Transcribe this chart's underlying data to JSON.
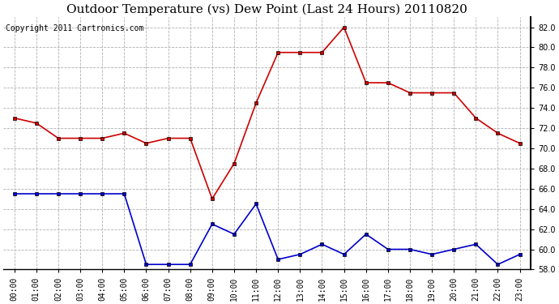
{
  "title": "Outdoor Temperature (vs) Dew Point (Last 24 Hours) 20110820",
  "copyright_text": "Copyright 2011 Cartronics.com",
  "x_labels": [
    "00:00",
    "01:00",
    "02:00",
    "03:00",
    "04:00",
    "05:00",
    "06:00",
    "07:00",
    "08:00",
    "09:00",
    "10:00",
    "11:00",
    "12:00",
    "13:00",
    "14:00",
    "15:00",
    "16:00",
    "17:00",
    "18:00",
    "19:00",
    "20:00",
    "21:00",
    "22:00",
    "23:00"
  ],
  "temp_data": [
    73.0,
    72.5,
    71.0,
    71.0,
    71.0,
    71.5,
    70.5,
    71.0,
    71.0,
    65.0,
    68.5,
    74.5,
    79.5,
    79.5,
    79.5,
    82.0,
    76.5,
    76.5,
    75.5,
    75.5,
    75.5,
    73.0,
    71.5,
    70.5
  ],
  "dew_data": [
    65.5,
    65.5,
    65.5,
    65.5,
    65.5,
    65.5,
    58.5,
    58.5,
    58.5,
    62.5,
    61.5,
    64.5,
    59.0,
    59.5,
    60.5,
    59.5,
    61.5,
    60.0,
    60.0,
    59.5,
    60.0,
    60.5,
    58.5,
    59.5
  ],
  "temp_color": "#cc0000",
  "dew_color": "#0000cc",
  "bg_color": "#ffffff",
  "plot_bg_color": "#ffffff",
  "grid_color": "#b0b0b0",
  "ylim": [
    58.0,
    83.0
  ],
  "yticks": [
    58.0,
    60.0,
    62.0,
    64.0,
    66.0,
    68.0,
    70.0,
    72.0,
    74.0,
    76.0,
    78.0,
    80.0,
    82.0
  ],
  "title_fontsize": 11,
  "copyright_fontsize": 7,
  "tick_fontsize": 7,
  "marker": "s",
  "marker_size": 3,
  "linewidth": 1.2
}
